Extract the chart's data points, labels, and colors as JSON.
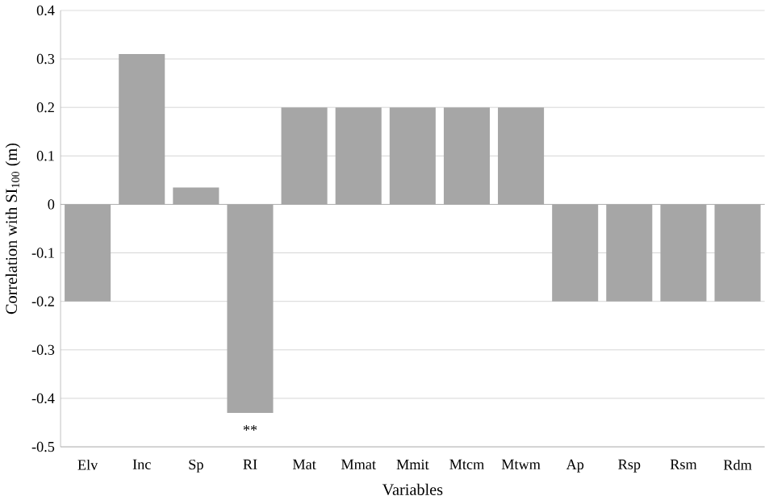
{
  "chart_data": {
    "type": "bar",
    "xlabel": "Variables",
    "ylabel": "Correlation with SI$_{100}$ (m)",
    "categories": [
      "Elv",
      "Inc",
      "Sp",
      "RI",
      "Mat",
      "Mmat",
      "Mmit",
      "Mtcm",
      "Mtwm",
      "Ap",
      "Rsp",
      "Rsm",
      "Rdm"
    ],
    "values": [
      -0.2,
      0.31,
      0.035,
      -0.43,
      0.2,
      0.2,
      0.2,
      0.2,
      0.2,
      -0.2,
      -0.2,
      -0.2,
      -0.2
    ],
    "color": "#a6a6a6",
    "ylim": [
      -0.5,
      0.4
    ],
    "yticks": [
      -0.5,
      -0.4,
      -0.3,
      -0.2,
      -0.1,
      0,
      0.1,
      0.2,
      0.3,
      0.4
    ],
    "grid": "y",
    "annotations": [
      {
        "text": "**",
        "x": "RI",
        "y": -0.43
      }
    ]
  }
}
